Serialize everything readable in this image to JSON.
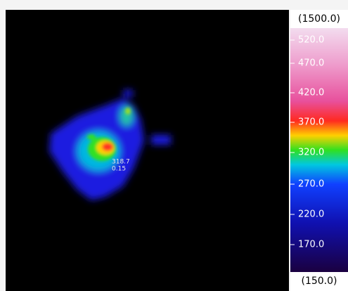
{
  "scale": {
    "max_label": "(1500.0)",
    "min_label": "(150.0)",
    "ticks": [
      "520.0",
      "470.0",
      "420.0",
      "370.0",
      "320.0",
      "270.0",
      "220.0",
      "170.0"
    ]
  },
  "readout": {
    "temperature": "318.7",
    "emissivity": "0.15"
  }
}
